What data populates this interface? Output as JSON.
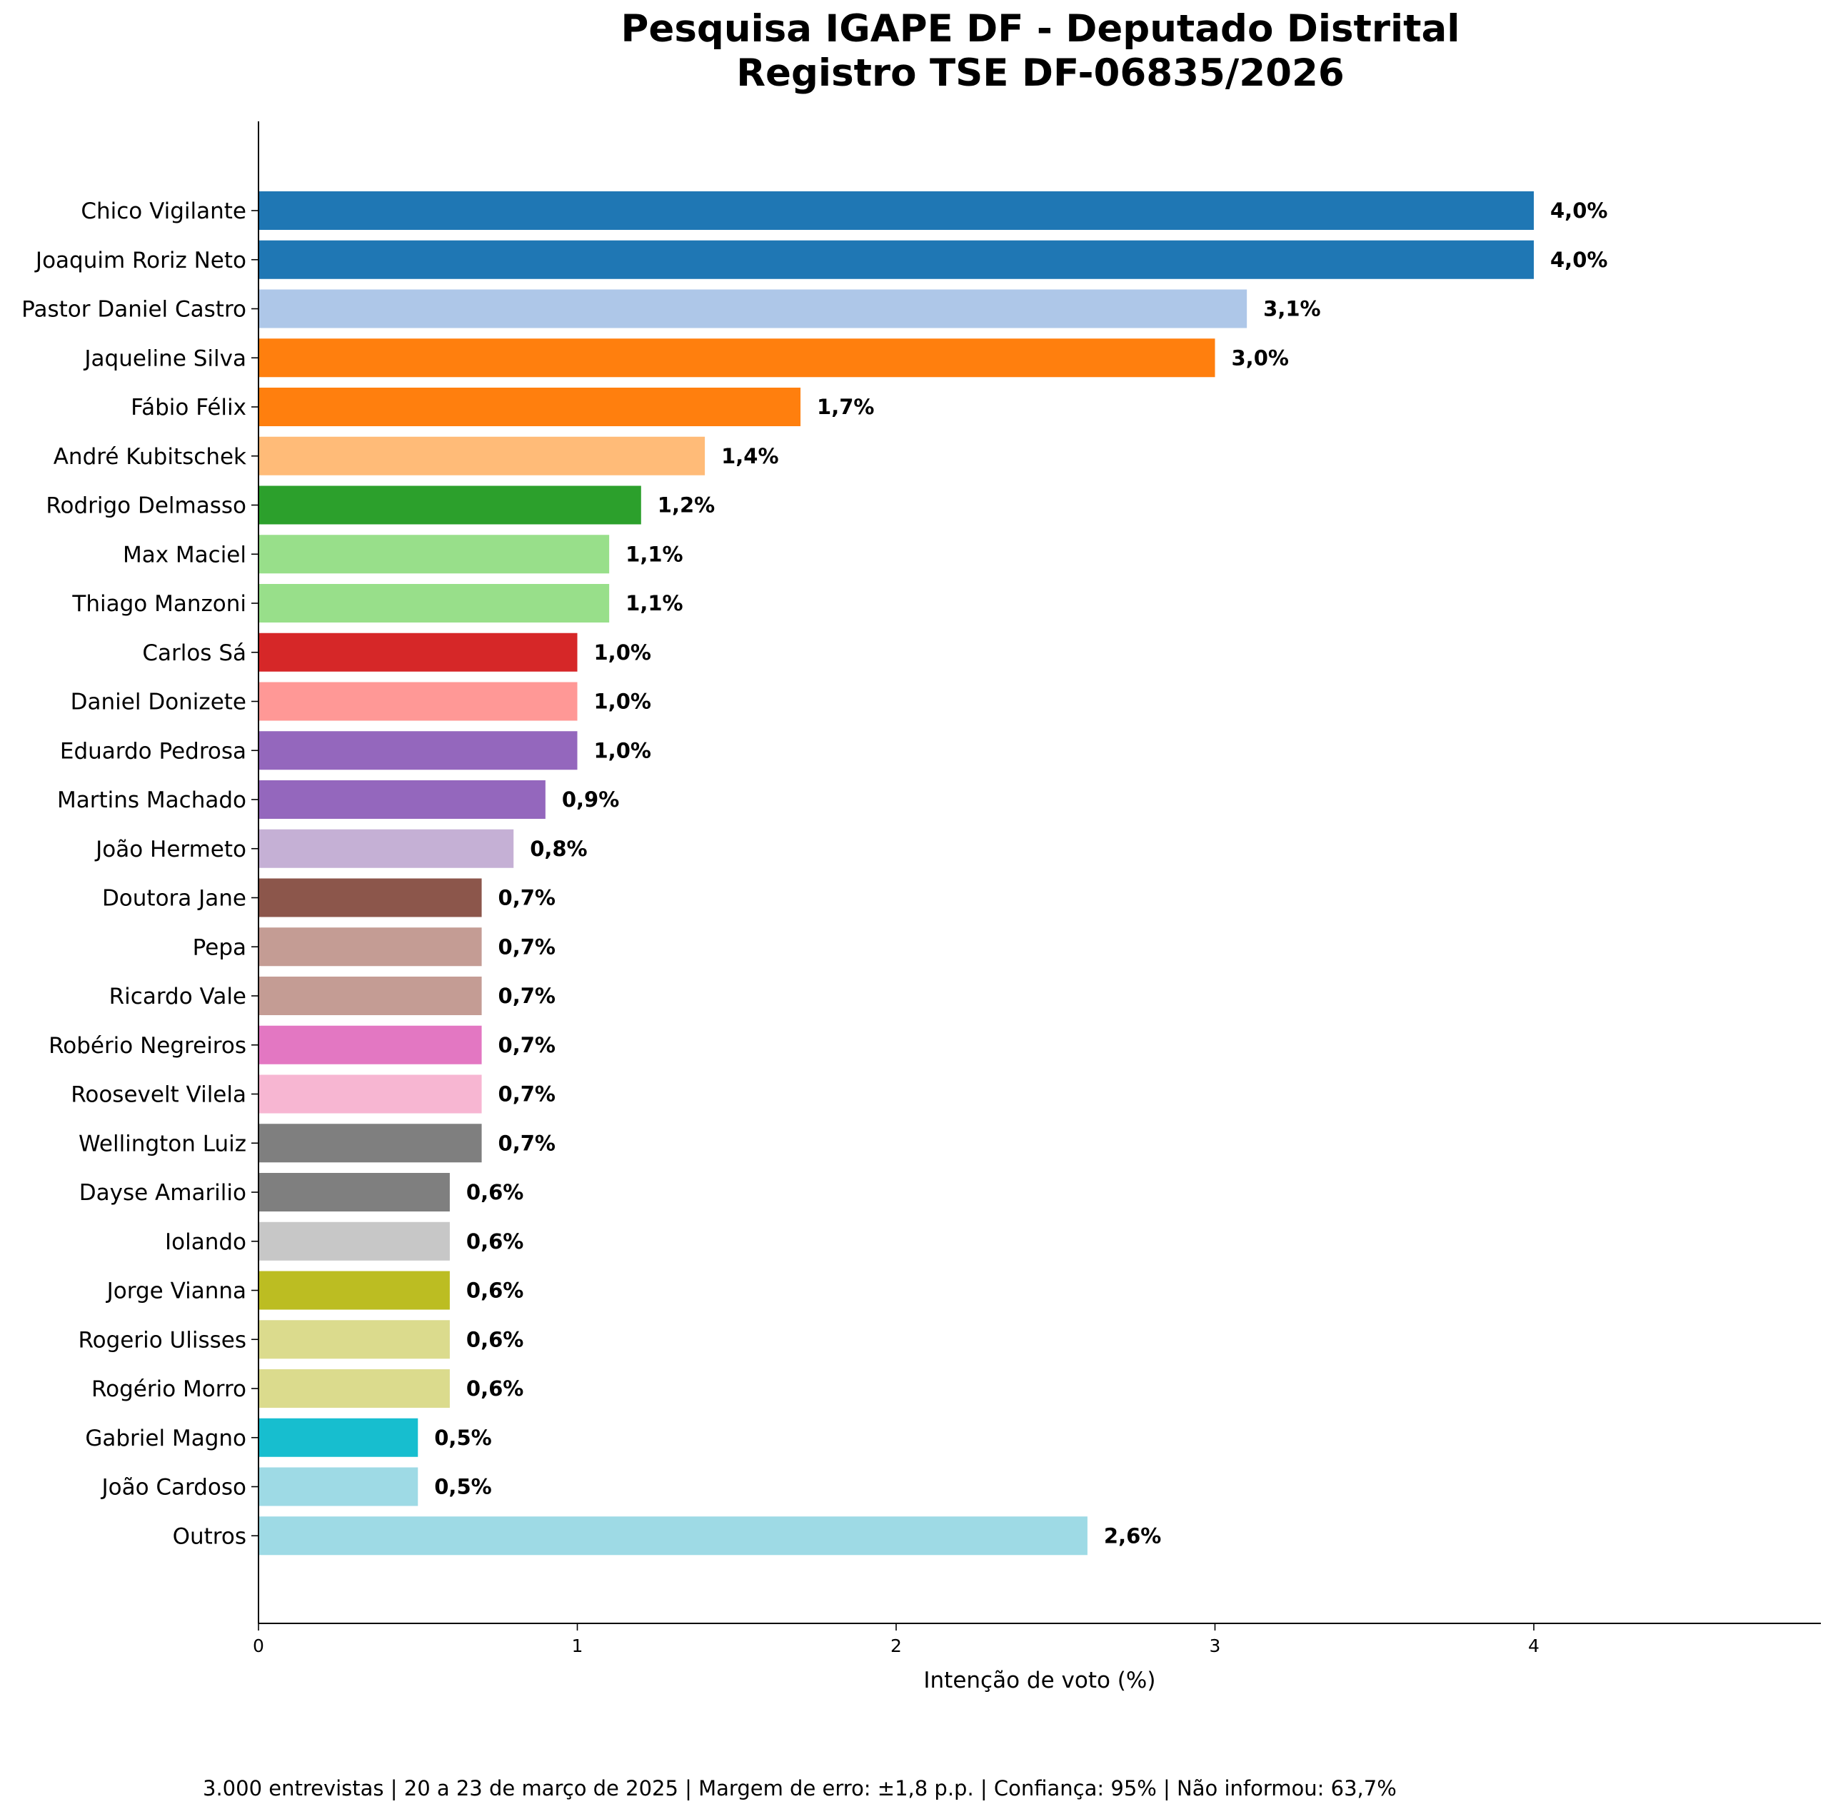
{
  "chart_data": {
    "type": "bar",
    "orientation": "horizontal",
    "title": [
      "Pesquisa IGAPE DF - Deputado Distrital",
      "Registro TSE DF-06835/2026"
    ],
    "xlabel": "Intenção de voto (%)",
    "ylabel": "",
    "xlim": [
      0,
      4.9
    ],
    "xticks": [
      "0",
      "1",
      "2",
      "3",
      "4"
    ],
    "grid": false,
    "categories": [
      "Chico Vigilante",
      "Joaquim Roriz Neto",
      "Pastor Daniel Castro",
      "Jaqueline Silva",
      "Fábio Félix",
      "André Kubitschek",
      "Rodrigo Delmasso",
      "Max Maciel",
      "Thiago Manzoni",
      "Carlos Sá",
      "Daniel Donizete",
      "Eduardo Pedrosa",
      "Martins Machado",
      "João Hermeto",
      "Doutora Jane",
      "Pepa",
      "Ricardo Vale",
      "Robério Negreiros",
      "Roosevelt Vilela",
      "Wellington Luiz",
      "Dayse Amarilio",
      "Iolando",
      "Jorge Vianna",
      "Rogerio Ulisses",
      "Rogério Morro",
      "Gabriel Magno",
      "João Cardoso",
      "Outros"
    ],
    "values": [
      4.0,
      4.0,
      3.1,
      3.0,
      1.7,
      1.4,
      1.2,
      1.1,
      1.1,
      1.0,
      1.0,
      1.0,
      0.9,
      0.8,
      0.7,
      0.7,
      0.7,
      0.7,
      0.7,
      0.7,
      0.6,
      0.6,
      0.6,
      0.6,
      0.6,
      0.5,
      0.5,
      2.6
    ],
    "value_labels": [
      "4,0%",
      "4,0%",
      "3,1%",
      "3,0%",
      "1,7%",
      "1,4%",
      "1,2%",
      "1,1%",
      "1,1%",
      "1,0%",
      "1,0%",
      "1,0%",
      "0,9%",
      "0,8%",
      "0,7%",
      "0,7%",
      "0,7%",
      "0,7%",
      "0,7%",
      "0,7%",
      "0,6%",
      "0,6%",
      "0,6%",
      "0,6%",
      "0,6%",
      "0,5%",
      "0,5%",
      "2,6%"
    ],
    "colors": [
      "#1f77b4",
      "#1f77b4",
      "#aec7e8",
      "#ff7f0e",
      "#ff7f0e",
      "#ffbb78",
      "#2ca02c",
      "#98df8a",
      "#98df8a",
      "#d62728",
      "#ff9896",
      "#9467bd",
      "#9467bd",
      "#c5b0d5",
      "#8c564b",
      "#c49c94",
      "#c49c94",
      "#e377c2",
      "#f7b6d2",
      "#7f7f7f",
      "#7f7f7f",
      "#c7c7c7",
      "#bcbd22",
      "#dbdb8d",
      "#dbdb8d",
      "#17becf",
      "#9edae5",
      "#9edae5"
    ]
  },
  "footer": "3.000 entrevistas | 20 a 23 de março de 2025 | Margem de erro: ±1,8 p.p. | Confiança: 95% | Não informou: 63,7%"
}
